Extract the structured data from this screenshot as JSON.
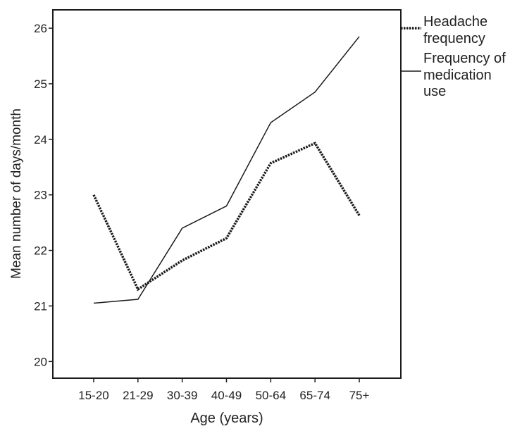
{
  "chart_data": {
    "type": "line",
    "categories": [
      "15-20",
      "21-29",
      "30-39",
      "40-49",
      "50-64",
      "65-74",
      "75+"
    ],
    "series": [
      {
        "name": "Headache frequency",
        "values": [
          23.0,
          21.3,
          21.82,
          22.22,
          23.57,
          23.93,
          22.63
        ],
        "style": "dashed"
      },
      {
        "name": "Frequency of medication use",
        "values": [
          21.05,
          21.12,
          22.4,
          22.8,
          24.3,
          24.85,
          25.85
        ],
        "style": "solid"
      }
    ],
    "xlabel": "Age (years)",
    "ylabel": "Mean number of days/month",
    "ylim": [
      19.7,
      26.33
    ],
    "yticks": [
      20,
      21,
      22,
      23,
      24,
      25,
      26
    ],
    "legend_position": "right",
    "grid": false,
    "colors": {
      "line": "#1a1a1a",
      "axis": "#1a1a1a",
      "text": "#222222"
    }
  },
  "legend": {
    "headache_line1": "Headache",
    "headache_line2": "frequency",
    "medication_line1": "Frequency of",
    "medication_line2": "medication",
    "medication_line3": "use"
  }
}
